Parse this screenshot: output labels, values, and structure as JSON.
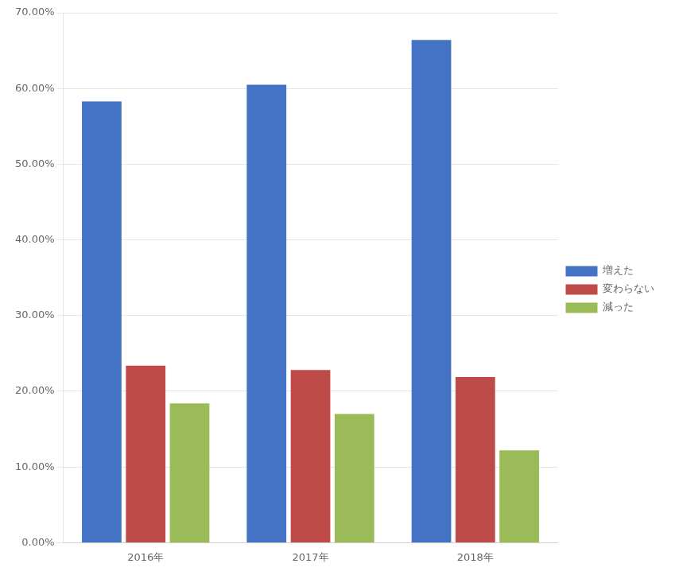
{
  "chart_data": {
    "type": "bar",
    "categories": [
      "2016年",
      "2017年",
      "2018年"
    ],
    "series": [
      {
        "name": "増えた",
        "color": "#4472C4",
        "values": [
          0.583,
          0.605,
          0.664
        ]
      },
      {
        "name": "変わらない",
        "color": "#BE4B48",
        "values": [
          0.234,
          0.228,
          0.219
        ]
      },
      {
        "name": "減った",
        "color": "#9BBB59",
        "values": [
          0.184,
          0.17,
          0.122
        ]
      }
    ],
    "ylim": [
      0.0,
      0.7
    ],
    "yticks": [
      {
        "value": 0.0,
        "label": "0.00%"
      },
      {
        "value": 0.1,
        "label": "10.00%"
      },
      {
        "value": 0.2,
        "label": "20.00%"
      },
      {
        "value": 0.3,
        "label": "30.00%"
      },
      {
        "value": 0.4,
        "label": "40.00%"
      },
      {
        "value": 0.5,
        "label": "50.00%"
      },
      {
        "value": 0.6,
        "label": "60.00%"
      },
      {
        "value": 0.7,
        "label": "70.00%"
      }
    ],
    "grid": true,
    "legend": "right"
  }
}
